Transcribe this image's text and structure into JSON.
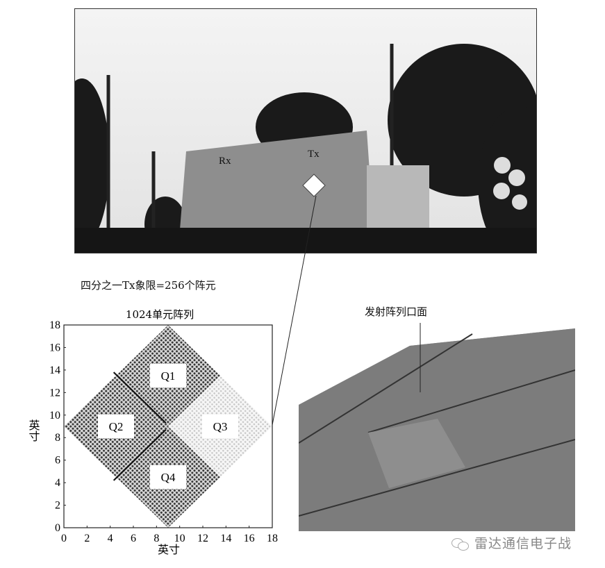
{
  "photo_top": {
    "labels": {
      "rx": "Rx",
      "tx": "Tx"
    }
  },
  "caption_quadrant": "四分之一Tx象限=256个阵元",
  "caption_aperture": "发射阵列口面",
  "watermark": {
    "text": "雷达通信电子战",
    "icon": "wechat-icon"
  },
  "chart_data": {
    "type": "scatter",
    "title": "1024单元阵列",
    "xlabel": "英寸",
    "ylabel": "英寸",
    "xlim": [
      0,
      18
    ],
    "ylim": [
      0,
      18
    ],
    "xticks": [
      "0",
      "2",
      "4",
      "6",
      "8",
      "10",
      "12",
      "14",
      "16",
      "18"
    ],
    "yticks": [
      "0",
      "2",
      "4",
      "6",
      "8",
      "10",
      "12",
      "14",
      "16",
      "18"
    ],
    "quadrants": [
      {
        "label": "Q1",
        "center": [
          9,
          13.5
        ],
        "half_diagonal": 4.5,
        "shade": "dark"
      },
      {
        "label": "Q2",
        "center": [
          4.5,
          9
        ],
        "half_diagonal": 4.5,
        "shade": "dark"
      },
      {
        "label": "Q3",
        "center": [
          13.5,
          9
        ],
        "half_diagonal": 4.5,
        "shade": "light"
      },
      {
        "label": "Q4",
        "center": [
          9,
          4.5
        ],
        "half_diagonal": 4.5,
        "shade": "dark"
      }
    ],
    "divider_lines": [
      [
        [
          4.3,
          13.8
        ],
        [
          8.8,
          9.3
        ]
      ],
      [
        [
          4.3,
          4.2
        ],
        [
          8.8,
          8.7
        ]
      ]
    ]
  }
}
